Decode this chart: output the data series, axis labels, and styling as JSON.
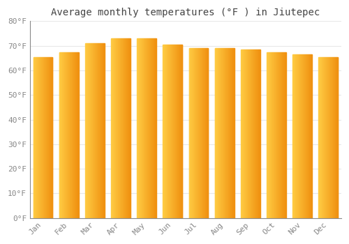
{
  "title": "Average monthly temperatures (°F ) in Jiutepec",
  "months": [
    "Jan",
    "Feb",
    "Mar",
    "Apr",
    "May",
    "Jun",
    "Jul",
    "Aug",
    "Sep",
    "Oct",
    "Nov",
    "Dec"
  ],
  "values": [
    65.5,
    67.5,
    71.0,
    73.0,
    73.0,
    70.5,
    69.0,
    69.0,
    68.5,
    67.5,
    66.5,
    65.5
  ],
  "ylim": [
    0,
    80
  ],
  "ytick_step": 10,
  "background_color": "#FFFFFF",
  "grid_color": "#E8E8E8",
  "title_fontsize": 10,
  "tick_fontsize": 8,
  "font_family": "monospace",
  "bar_color_left": "#FFCC44",
  "bar_color_right": "#F09010",
  "bar_width": 0.75
}
